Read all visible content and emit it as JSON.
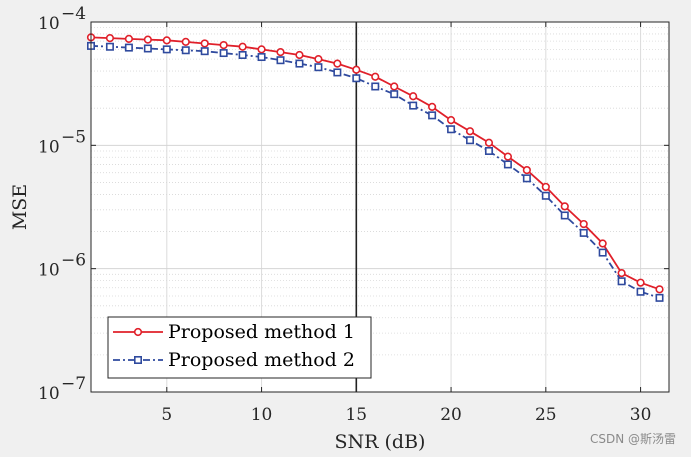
{
  "chart_data": {
    "type": "line",
    "xlabel": "SNR (dB)",
    "ylabel": "MSE",
    "xlim": [
      1,
      31.5
    ],
    "ylim": [
      1e-07,
      0.0001
    ],
    "yscale": "log",
    "xticks": [
      5,
      10,
      15,
      20,
      25,
      30
    ],
    "yticks": [
      0.0001,
      1e-05,
      1e-06,
      1e-07
    ],
    "ytick_labels": [
      {
        "base": "10",
        "exp": "−4"
      },
      {
        "base": "10",
        "exp": "−5"
      },
      {
        "base": "10",
        "exp": "−6"
      },
      {
        "base": "10",
        "exp": "−7"
      }
    ],
    "grid": true,
    "vline_x": 15,
    "legend_position": "bottom-left",
    "x": [
      1,
      2,
      3,
      4,
      5,
      6,
      7,
      8,
      9,
      10,
      11,
      12,
      13,
      14,
      15,
      16,
      17,
      18,
      19,
      20,
      21,
      22,
      23,
      24,
      25,
      26,
      27,
      28,
      29,
      30,
      31
    ],
    "series": [
      {
        "name": "Proposed method 1",
        "color": "#e0202a",
        "marker": "circle",
        "linestyle": "solid",
        "values": [
          7.5e-05,
          7.4e-05,
          7.3e-05,
          7.2e-05,
          7.1e-05,
          6.9e-05,
          6.7e-05,
          6.5e-05,
          6.3e-05,
          6e-05,
          5.7e-05,
          5.4e-05,
          5e-05,
          4.6e-05,
          4.1e-05,
          3.6e-05,
          3e-05,
          2.5e-05,
          2.05e-05,
          1.6e-05,
          1.3e-05,
          1.05e-05,
          8.1e-06,
          6.3e-06,
          4.6e-06,
          3.2e-06,
          2.3e-06,
          1.6e-06,
          9.2e-07,
          7.7e-07,
          6.8e-07
        ]
      },
      {
        "name": "Proposed method 2",
        "color": "#2f4a9e",
        "marker": "square",
        "linestyle": "dashdot",
        "values": [
          6.4e-05,
          6.3e-05,
          6.2e-05,
          6.1e-05,
          6e-05,
          5.9e-05,
          5.8e-05,
          5.6e-05,
          5.4e-05,
          5.2e-05,
          4.9e-05,
          4.6e-05,
          4.3e-05,
          3.9e-05,
          3.5e-05,
          3e-05,
          2.6e-05,
          2.1e-05,
          1.75e-05,
          1.35e-05,
          1.1e-05,
          9e-06,
          7e-06,
          5.4e-06,
          3.9e-06,
          2.7e-06,
          1.95e-06,
          1.35e-06,
          7.9e-07,
          6.5e-07,
          5.8e-07
        ]
      }
    ]
  },
  "watermark": "CSDN @斯汤雷"
}
